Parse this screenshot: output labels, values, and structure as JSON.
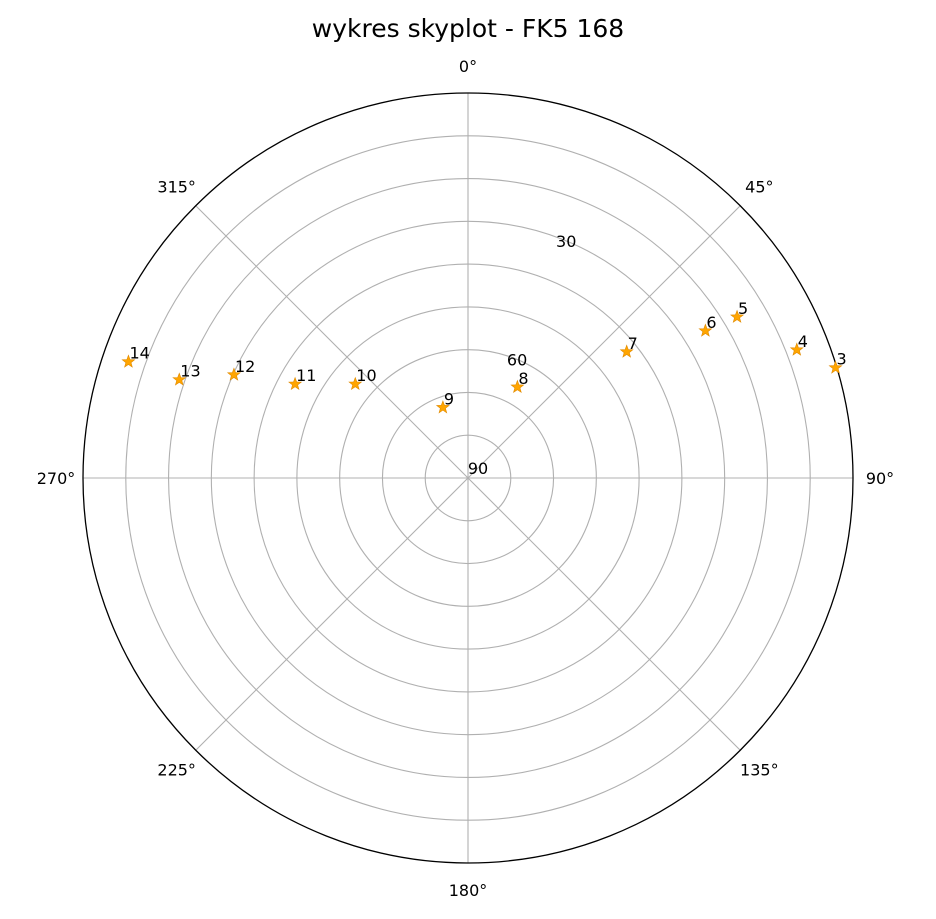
{
  "chart_data": {
    "type": "scatter",
    "projection": "polar",
    "title": "wykres skyplot - FK5 168",
    "theta_zero_location": "N",
    "theta_direction": "clockwise",
    "theta_ticks": [
      "0°",
      "45°",
      "90°",
      "135°",
      "180°",
      "225°",
      "270°",
      "315°"
    ],
    "r_axis": "elevation",
    "r_ticks": [
      "90",
      "60",
      "30"
    ],
    "r_tick_values": [
      90,
      60,
      30
    ],
    "rlim": [
      90,
      0
    ],
    "grid": true,
    "marker": "star",
    "marker_color": "#FFA500",
    "points": [
      {
        "label": "3",
        "azimuth": 73.3,
        "elevation": 0.3
      },
      {
        "label": "4",
        "azimuth": 68.7,
        "elevation": 7.5
      },
      {
        "label": "5",
        "azimuth": 59.1,
        "elevation": 16.7
      },
      {
        "label": "6",
        "azimuth": 58.2,
        "elevation": 24.7
      },
      {
        "label": "7",
        "azimuth": 51.5,
        "elevation": 42.6
      },
      {
        "label": "8",
        "azimuth": 28.5,
        "elevation": 65.8
      },
      {
        "label": "9",
        "azimuth": -19.6,
        "elevation": 72.5
      },
      {
        "label": "10",
        "azimuth": -50.2,
        "elevation": 55.7
      },
      {
        "label": "11",
        "azimuth": -61.5,
        "elevation": 44.0
      },
      {
        "label": "12",
        "azimuth": -66.2,
        "elevation": 30.2
      },
      {
        "label": "13",
        "azimuth": -71.2,
        "elevation": 18.7
      },
      {
        "label": "14",
        "azimuth": -71.1,
        "elevation": 6.1
      }
    ]
  }
}
